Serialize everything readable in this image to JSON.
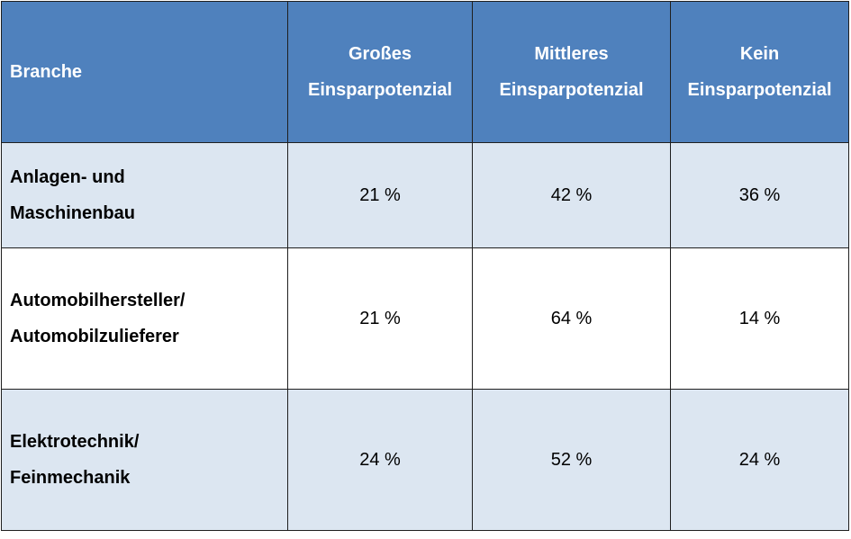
{
  "table": {
    "headers": [
      [
        "Branche"
      ],
      [
        "Großes",
        "Einsparpotenzial"
      ],
      [
        "Mittleres",
        "Einsparpotenzial"
      ],
      [
        "Kein",
        "Einsparpotenzial"
      ]
    ],
    "rows": [
      {
        "branche": [
          "Anlagen- und",
          "Maschinenbau"
        ],
        "values": [
          "21 %",
          "42 %",
          "36 %"
        ]
      },
      {
        "branche": [
          "Automobilhersteller/",
          "Automobilzulieferer"
        ],
        "values": [
          "21 %",
          "64 %",
          "14 %"
        ]
      },
      {
        "branche": [
          "Elektrotechnik/",
          "Feinmechanik"
        ],
        "values": [
          "24 %",
          "52 %",
          "24 %"
        ]
      }
    ]
  },
  "colors": {
    "header_bg": "#4f81bd",
    "header_text": "#ffffff",
    "row_shaded": "#dce6f1",
    "row_plain": "#ffffff",
    "border": "#1f1f1f"
  }
}
